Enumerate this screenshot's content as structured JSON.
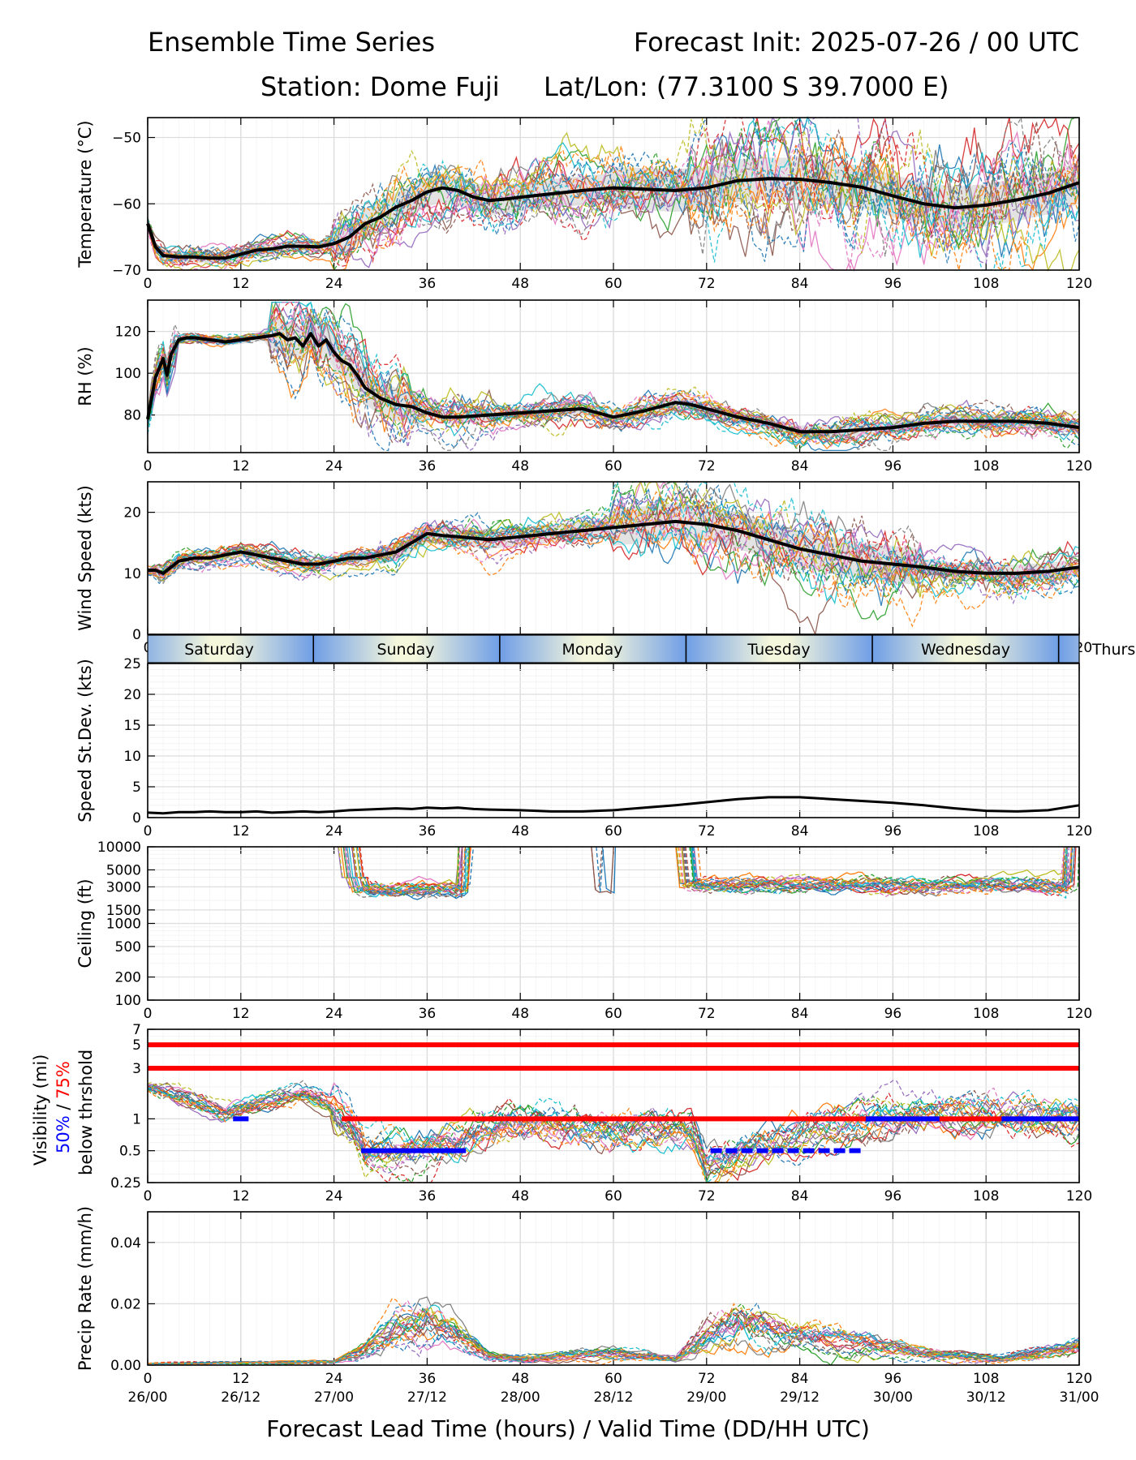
{
  "header": {
    "title": "Ensemble Time Series",
    "init": "Forecast Init: 2025-07-26 / 00 UTC",
    "station": "Station: Dome Fuji",
    "latlon": "Lat/Lon: (77.3100 S 39.7000 E)"
  },
  "xlabel": "Forecast Lead Time (hours) / Valid Time (DD/HH UTC)",
  "colors": {
    "members": [
      "#1f77b4",
      "#ff7f0e",
      "#2ca02c",
      "#d62728",
      "#9467bd",
      "#8c564b",
      "#e377c2",
      "#7f7f7f",
      "#bcbd22",
      "#17becf"
    ],
    "mean": "#000000",
    "spread": "#d9d9d9",
    "threshold": "#ff0000",
    "prob50": "#0000ff",
    "day_band_dark": "#6f9ee6",
    "day_band_light": "#f5f7dc"
  },
  "vis_label": {
    "line1": "Visibility (mi)",
    "p50": "50%",
    "sep": " / ",
    "p75": "75%",
    "line3": "below thrshold"
  },
  "chart_data": {
    "type": "line",
    "x": {
      "range": [
        0,
        120
      ],
      "ticks": [
        0,
        12,
        24,
        36,
        48,
        60,
        72,
        84,
        96,
        108,
        120
      ]
    },
    "valid_time_ticks": [
      "26/00",
      "26/12",
      "27/00",
      "27/12",
      "28/00",
      "28/12",
      "29/00",
      "29/12",
      "30/00",
      "30/12",
      "31/00"
    ],
    "day_band": [
      "Saturday",
      "Sunday",
      "Monday",
      "Tuesday",
      "Wednesday",
      "Thursday"
    ],
    "panels": [
      {
        "id": "temp",
        "ylabel": "Temperature (°C)",
        "ylim": [
          -70,
          -47
        ],
        "yticks": [
          -70,
          -60,
          -50
        ],
        "mean": {
          "x": [
            0,
            1,
            2,
            4,
            6,
            8,
            10,
            12,
            14,
            16,
            18,
            20,
            22,
            24,
            26,
            28,
            30,
            32,
            34,
            36,
            38,
            40,
            42,
            44,
            46,
            48,
            52,
            56,
            60,
            64,
            68,
            72,
            76,
            80,
            84,
            88,
            92,
            96,
            100,
            104,
            108,
            112,
            116,
            120
          ],
          "y": [
            -63,
            -66.5,
            -67.8,
            -68,
            -68,
            -68.2,
            -68.2,
            -67.6,
            -67,
            -66.8,
            -66.4,
            -66.4,
            -66.5,
            -66,
            -65,
            -63,
            -62,
            -60.5,
            -59.5,
            -58.2,
            -57.6,
            -58,
            -59,
            -59.5,
            -59.3,
            -59,
            -58.5,
            -58,
            -57.6,
            -57.8,
            -58,
            -57.6,
            -56.5,
            -56.2,
            -56.3,
            -56.8,
            -57.5,
            -58.8,
            -60,
            -60.6,
            -60.2,
            -59.4,
            -58.4,
            -56.8
          ]
        },
        "spread": 1.8
      },
      {
        "id": "rh",
        "ylabel": "RH (%)",
        "ylim": [
          62,
          135
        ],
        "yticks": [
          80,
          100,
          120
        ],
        "mean": {
          "x": [
            0,
            1,
            2,
            2.5,
            3,
            4,
            5,
            6,
            8,
            10,
            12,
            14,
            16,
            17,
            18,
            19,
            20,
            21,
            22,
            23,
            24,
            25,
            26,
            27,
            28,
            30,
            32,
            34,
            36,
            38,
            40,
            44,
            48,
            52,
            56,
            60,
            64,
            68,
            70,
            72,
            76,
            80,
            84,
            88,
            92,
            96,
            100,
            104,
            108,
            112,
            116,
            120
          ],
          "y": [
            78,
            98,
            107,
            99,
            109,
            116,
            117,
            117,
            116,
            115,
            116,
            117,
            118,
            119,
            116,
            117,
            113,
            119,
            113,
            116,
            110,
            106,
            104,
            99,
            93,
            88,
            85,
            84,
            81,
            79,
            79,
            80,
            81,
            82,
            83,
            79,
            82,
            86,
            85,
            83,
            79,
            76,
            72,
            72,
            73,
            74,
            76,
            77,
            77,
            77,
            76,
            74
          ]
        },
        "spread": 4
      },
      {
        "id": "wind",
        "ylabel": "Wind Speed (kts)",
        "ylim": [
          0,
          25
        ],
        "yticks": [
          0,
          10,
          20
        ],
        "mean": {
          "x": [
            0,
            1,
            2,
            3,
            4,
            6,
            8,
            10,
            12,
            14,
            16,
            18,
            20,
            22,
            24,
            26,
            28,
            30,
            32,
            34,
            36,
            38,
            40,
            44,
            48,
            52,
            56,
            60,
            64,
            68,
            72,
            76,
            80,
            84,
            88,
            92,
            96,
            100,
            104,
            108,
            112,
            116,
            120
          ],
          "y": [
            10.5,
            10.5,
            10,
            11,
            12,
            12.5,
            12.5,
            13,
            13.5,
            13,
            12.5,
            12,
            11.5,
            11.5,
            12,
            12.5,
            12.5,
            13,
            13.5,
            15,
            16.5,
            16.2,
            16,
            15.5,
            16,
            16.5,
            17,
            17.5,
            18,
            18.5,
            18,
            17,
            15.5,
            14,
            13,
            12,
            11.5,
            11,
            10.3,
            10,
            10,
            10.3,
            11
          ]
        },
        "spread": 1.8
      },
      {
        "id": "sd",
        "ylabel": "Speed St.Dev. (kts)",
        "ylim": [
          0,
          25
        ],
        "yticks": [
          0,
          5,
          10,
          15,
          20,
          25
        ],
        "mean": {
          "x": [
            0,
            2,
            4,
            6,
            8,
            10,
            12,
            14,
            16,
            18,
            20,
            22,
            24,
            26,
            28,
            30,
            32,
            34,
            36,
            38,
            40,
            42,
            44,
            48,
            52,
            56,
            60,
            64,
            68,
            72,
            76,
            80,
            84,
            88,
            92,
            96,
            100,
            104,
            108,
            112,
            116,
            120
          ],
          "y": [
            0.8,
            0.7,
            0.9,
            0.9,
            1,
            0.9,
            0.9,
            1,
            0.8,
            0.9,
            1,
            0.9,
            1,
            1.2,
            1.3,
            1.4,
            1.5,
            1.4,
            1.6,
            1.5,
            1.6,
            1.4,
            1.3,
            1.2,
            1,
            1,
            1.2,
            1.6,
            2,
            2.5,
            3,
            3.3,
            3.3,
            3,
            2.7,
            2.4,
            2,
            1.5,
            1.1,
            1,
            1.2,
            2
          ]
        }
      },
      {
        "id": "ceiling",
        "ylabel": "Ceiling (ft)",
        "scale": "log",
        "ylim": [
          100,
          10000
        ],
        "yticks": [
          100,
          200,
          500,
          1000,
          1500,
          3000,
          5000,
          10000
        ],
        "ytick_labels": [
          "100",
          "200",
          "500",
          "1000",
          "1500",
          "3000",
          "5000",
          "10000"
        ]
      },
      {
        "id": "vis",
        "scale": "log",
        "ylim": [
          0.25,
          7
        ],
        "yticks": [
          0.25,
          0.5,
          1,
          3,
          5,
          7
        ],
        "ytick_labels": [
          "0.25",
          "0.5",
          "1",
          "3",
          "5",
          "7"
        ],
        "thresholds": [
          5,
          3
        ]
      },
      {
        "id": "precip",
        "ylabel": "Precip Rate (mm/h)",
        "ylim": [
          0,
          0.05
        ],
        "yticks": [
          0.0,
          0.02,
          0.04
        ],
        "ytick_labels": [
          "0.00",
          "0.02",
          "0.04"
        ]
      }
    ]
  }
}
